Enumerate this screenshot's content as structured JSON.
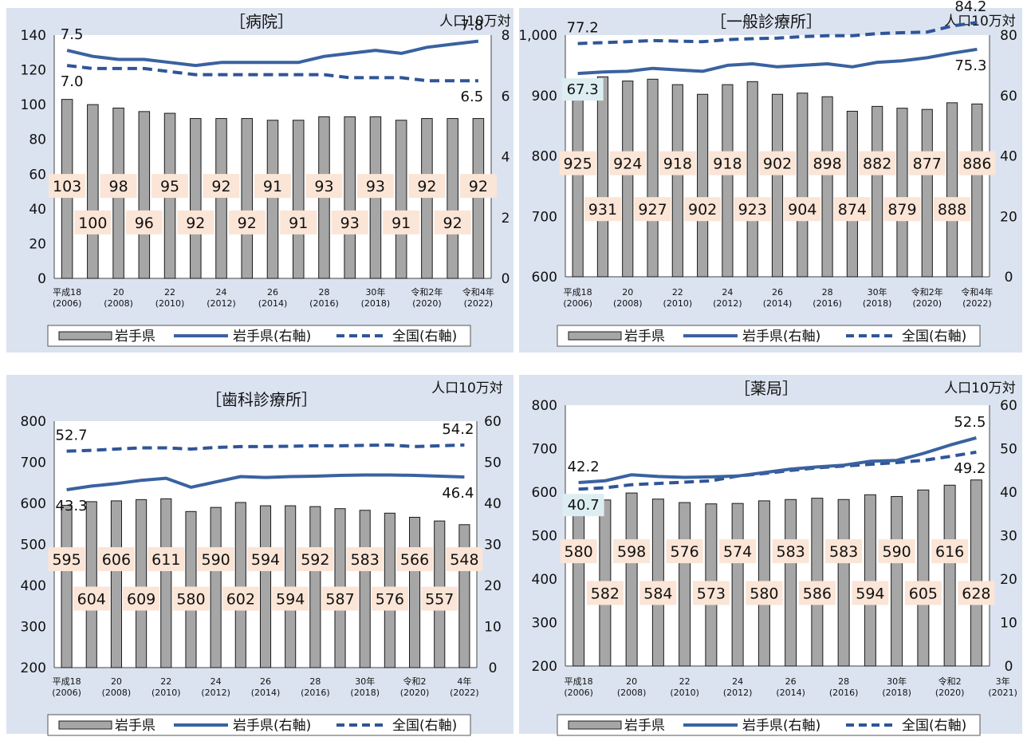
{
  "legend": {
    "bar": "岩手県",
    "line": "岩手県(右軸)",
    "dash": "全国(右軸)"
  },
  "colors": {
    "bar": "#a6a6a6",
    "bar_stroke": "#1a1a1a",
    "line": "#3a62a0",
    "dash": "#2f5597",
    "label_bg": "#fbe5d6",
    "label_bg_blue": "#ddeef3",
    "panel_bg": "#dbe3f0"
  },
  "chart_data": [
    {
      "type": "bar",
      "title": "［病院］",
      "unit_right": "人口10万対",
      "y_left": {
        "min": 0,
        "max": 140,
        "ticks": [
          "0",
          "20",
          "40",
          "60",
          "80",
          "100",
          "120",
          "140"
        ]
      },
      "y_right": {
        "min": 0,
        "max": 8,
        "ticks": [
          "0",
          "2",
          "4",
          "6",
          "8"
        ]
      },
      "x_ticks": [
        {
          "l1": "平成18",
          "l2": "(2006)"
        },
        {
          "l1": "20",
          "l2": "(2008)"
        },
        {
          "l1": "22",
          "l2": "(2010)"
        },
        {
          "l1": "24",
          "l2": "(2012)"
        },
        {
          "l1": "26",
          "l2": "(2014)"
        },
        {
          "l1": "28",
          "l2": "(2016)"
        },
        {
          "l1": "30年",
          "l2": "(2018)"
        },
        {
          "l1": "令和2年",
          "l2": "(2020)"
        },
        {
          "l1": "令和4年",
          "l2": "(2022)"
        }
      ],
      "categories": [
        "2006",
        "2007",
        "2008",
        "2009",
        "2010",
        "2011",
        "2012",
        "2013",
        "2014",
        "2015",
        "2016",
        "2017",
        "2018",
        "2019",
        "2020",
        "2021",
        "2022"
      ],
      "bars": {
        "name": "岩手県",
        "values": [
          103,
          100,
          98,
          96,
          95,
          92,
          92,
          92,
          91,
          91,
          93,
          93,
          93,
          91,
          92,
          92,
          92
        ]
      },
      "line": {
        "name": "岩手県(右軸)",
        "values": [
          7.5,
          7.3,
          7.2,
          7.2,
          7.1,
          7.0,
          7.1,
          7.1,
          7.1,
          7.1,
          7.3,
          7.4,
          7.5,
          7.4,
          7.6,
          7.7,
          7.8
        ]
      },
      "dash": {
        "name": "全国(右軸)",
        "values": [
          7.0,
          6.9,
          6.9,
          6.9,
          6.8,
          6.7,
          6.7,
          6.7,
          6.7,
          6.7,
          6.7,
          6.6,
          6.6,
          6.6,
          6.5,
          6.5,
          6.5
        ]
      },
      "line_labels": [
        {
          "text": "7.5",
          "series": "line",
          "i": 0
        },
        {
          "text": "7.0",
          "series": "dash",
          "i": 0
        },
        {
          "text": "7.8",
          "series": "line",
          "i": 16
        },
        {
          "text": "6.5",
          "series": "dash",
          "i": 16
        }
      ]
    },
    {
      "type": "bar",
      "title": "［一般診療所］",
      "unit_right": "人口10万対",
      "y_left": {
        "min": 600,
        "max": 1000,
        "ticks": [
          "600",
          "700",
          "800",
          "900",
          "1,000"
        ]
      },
      "y_right": {
        "min": 0,
        "max": 80,
        "ticks": [
          "0",
          "20",
          "40",
          "60",
          "80"
        ]
      },
      "x_ticks": [
        {
          "l1": "平成18",
          "l2": "(2006)"
        },
        {
          "l1": "20",
          "l2": "(2008)"
        },
        {
          "l1": "22",
          "l2": "(2010)"
        },
        {
          "l1": "24",
          "l2": "(2012)"
        },
        {
          "l1": "26",
          "l2": "(2014)"
        },
        {
          "l1": "28",
          "l2": "(2016)"
        },
        {
          "l1": "30年",
          "l2": "(2018)"
        },
        {
          "l1": "令和2年",
          "l2": "(2020)"
        },
        {
          "l1": "令和4年",
          "l2": "(2022)"
        }
      ],
      "categories": [
        "2006",
        "2007",
        "2008",
        "2009",
        "2010",
        "2011",
        "2012",
        "2013",
        "2014",
        "2015",
        "2016",
        "2017",
        "2018",
        "2019",
        "2020",
        "2021",
        "2022"
      ],
      "bars": {
        "name": "岩手県",
        "values": [
          925,
          931,
          924,
          927,
          918,
          902,
          918,
          923,
          902,
          904,
          898,
          874,
          882,
          879,
          877,
          888,
          886
        ]
      },
      "line": {
        "name": "岩手県(右軸)",
        "values": [
          67.3,
          67.8,
          68.0,
          69.0,
          68.5,
          68.0,
          70.0,
          70.5,
          69.5,
          70.0,
          70.5,
          69.5,
          71.0,
          71.5,
          72.5,
          74.0,
          75.3
        ]
      },
      "dash": {
        "name": "全国(右軸)",
        "values": [
          77.2,
          77.5,
          77.8,
          78.2,
          78.0,
          77.8,
          78.5,
          78.8,
          79.0,
          79.5,
          79.8,
          79.8,
          80.5,
          80.8,
          81.0,
          83.0,
          84.2
        ]
      },
      "line_labels": [
        {
          "text": "77.2",
          "series": "dash",
          "i": 0
        },
        {
          "text": "67.3",
          "series": "line",
          "i": 0,
          "boxed": true
        },
        {
          "text": "84.2",
          "series": "dash",
          "i": 16
        },
        {
          "text": "75.3",
          "series": "line",
          "i": 16
        }
      ]
    },
    {
      "type": "bar",
      "title": "［歯科診療所］",
      "unit_right": "人口10万対",
      "y_left": {
        "min": 200,
        "max": 800,
        "ticks": [
          "200",
          "300",
          "400",
          "500",
          "600",
          "700",
          "800"
        ]
      },
      "y_right": {
        "min": 0,
        "max": 60,
        "ticks": [
          "0",
          "10",
          "20",
          "30",
          "40",
          "50",
          "60"
        ]
      },
      "x_ticks": [
        {
          "l1": "平成18",
          "l2": "(2006)"
        },
        {
          "l1": "20",
          "l2": "(2008)"
        },
        {
          "l1": "22",
          "l2": "(2010)"
        },
        {
          "l1": "24",
          "l2": "(2012)"
        },
        {
          "l1": "26",
          "l2": "(2014)"
        },
        {
          "l1": "28",
          "l2": "(2016)"
        },
        {
          "l1": "30年",
          "l2": "(2018)"
        },
        {
          "l1": "令和2",
          "l2": "(2020)"
        },
        {
          "l1": "4年",
          "l2": "(2022)"
        }
      ],
      "categories": [
        "2006",
        "2007",
        "2008",
        "2009",
        "2010",
        "2011",
        "2012",
        "2013",
        "2014",
        "2015",
        "2016",
        "2017",
        "2018",
        "2019",
        "2020",
        "2021",
        "2022"
      ],
      "bars": {
        "name": "岩手県",
        "values": [
          595,
          604,
          606,
          609,
          611,
          580,
          590,
          602,
          594,
          594,
          592,
          587,
          583,
          576,
          566,
          557,
          548
        ]
      },
      "line": {
        "name": "岩手県(右軸)",
        "values": [
          43.3,
          44.2,
          44.8,
          45.6,
          46.1,
          43.9,
          45.2,
          46.5,
          46.3,
          46.5,
          46.6,
          46.8,
          46.9,
          46.9,
          46.8,
          46.6,
          46.4
        ]
      },
      "dash": {
        "name": "全国(右軸)",
        "values": [
          52.7,
          52.9,
          53.2,
          53.5,
          53.5,
          53.2,
          53.6,
          53.8,
          53.8,
          53.9,
          54.0,
          54.0,
          54.1,
          54.2,
          53.8,
          54.0,
          54.2
        ]
      },
      "line_labels": [
        {
          "text": "52.7",
          "series": "dash",
          "i": 0
        },
        {
          "text": "43.3",
          "series": "line",
          "i": 0
        },
        {
          "text": "54.2",
          "series": "dash",
          "i": 16
        },
        {
          "text": "46.4",
          "series": "line",
          "i": 16
        }
      ]
    },
    {
      "type": "bar",
      "title": "［薬局］",
      "unit_right": "人口10万対",
      "y_left": {
        "min": 200,
        "max": 800,
        "ticks": [
          "200",
          "300",
          "400",
          "500",
          "600",
          "700",
          "800"
        ]
      },
      "y_right": {
        "min": 0,
        "max": 60,
        "ticks": [
          "0",
          "10",
          "20",
          "30",
          "40",
          "50",
          "60"
        ]
      },
      "x_ticks": [
        {
          "l1": "平成18",
          "l2": "(2006)"
        },
        {
          "l1": "20",
          "l2": "(2008)"
        },
        {
          "l1": "22",
          "l2": "(2010)"
        },
        {
          "l1": "24",
          "l2": "(2012)"
        },
        {
          "l1": "26",
          "l2": "(2014)"
        },
        {
          "l1": "28",
          "l2": "(2016)"
        },
        {
          "l1": "30年",
          "l2": "(2018)"
        },
        {
          "l1": "令和2",
          "l2": "(2020)"
        },
        {
          "l1": "3年",
          "l2": "(2021)"
        }
      ],
      "categories": [
        "2006",
        "2007",
        "2008",
        "2009",
        "2010",
        "2011",
        "2012",
        "2013",
        "2014",
        "2015",
        "2016",
        "2017",
        "2018",
        "2019",
        "2020",
        "2021"
      ],
      "bars": {
        "name": "岩手県",
        "values": [
          580,
          582,
          598,
          584,
          576,
          573,
          574,
          580,
          583,
          586,
          583,
          594,
          590,
          605,
          616,
          628
        ]
      },
      "line": {
        "name": "岩手県(右軸)",
        "values": [
          42.2,
          42.6,
          44.0,
          43.6,
          43.4,
          43.5,
          43.7,
          44.5,
          45.3,
          45.8,
          46.2,
          47.1,
          47.3,
          48.9,
          50.8,
          52.5
        ]
      },
      "dash": {
        "name": "全国(右軸)",
        "values": [
          40.7,
          41.0,
          41.7,
          42.0,
          42.3,
          42.6,
          43.7,
          44.3,
          45.0,
          45.6,
          46.0,
          46.4,
          46.8,
          47.3,
          48.2,
          49.2
        ]
      },
      "line_labels": [
        {
          "text": "42.2",
          "series": "line",
          "i": 0
        },
        {
          "text": "40.7",
          "series": "dash",
          "i": 0,
          "boxed": true
        },
        {
          "text": "52.5",
          "series": "line",
          "i": 15
        },
        {
          "text": "49.2",
          "series": "dash",
          "i": 15
        }
      ]
    }
  ]
}
